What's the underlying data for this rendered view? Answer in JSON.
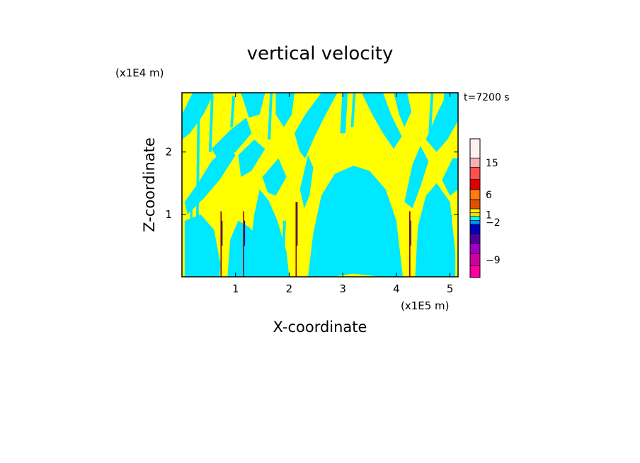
{
  "chart_data": {
    "type": "heatmap",
    "title": "vertical velocity",
    "xlabel": "X-coordinate",
    "ylabel": "Z-coordinate",
    "x_unit": "(x1E5 m)",
    "y_unit": "(x1E4 m)",
    "time_label": "t=7200 s",
    "xlim": [
      0,
      5.15
    ],
    "ylim": [
      0,
      2.95
    ],
    "xticks": [
      "1",
      "2",
      "3",
      "4",
      "5"
    ],
    "yticks": [
      "1",
      "2"
    ],
    "colorbar": {
      "tick_labels": [
        "15",
        "6",
        "1",
        "−2",
        "−9"
      ],
      "levels_top_to_bottom": [
        {
          "color": "#fff0f0"
        },
        {
          "color": "#f4b3b3"
        },
        {
          "color": "#ff5050"
        },
        {
          "color": "#e00000"
        },
        {
          "color": "#ff7a10"
        },
        {
          "color": "#e05000"
        },
        {
          "color": "#ffff00"
        },
        {
          "color": "#ffd700"
        },
        {
          "color": "#00ffff"
        },
        {
          "color": "#0090ff"
        },
        {
          "color": "#0000c0"
        },
        {
          "color": "#5000a0"
        },
        {
          "color": "#a000c0"
        },
        {
          "color": "#d000a0"
        },
        {
          "color": "#ff00a0"
        }
      ]
    },
    "field_colors": {
      "negative_small": "#00e8ff",
      "positive_small": "#ffff00",
      "updraft_core": "#8b0000",
      "downdraft_core": "#1010a0"
    },
    "updraft_x": [
      0.73,
      1.15,
      2.13,
      4.25
    ]
  }
}
